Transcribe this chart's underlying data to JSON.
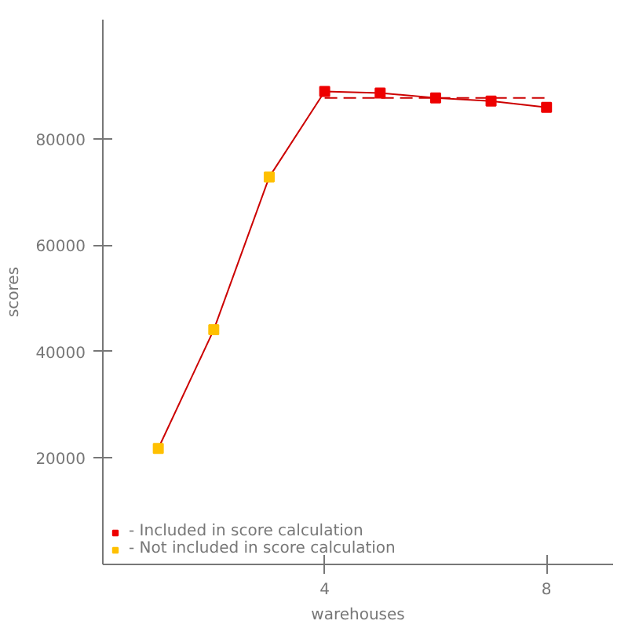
{
  "chart_data": {
    "type": "line",
    "xlabel": "warehouses",
    "ylabel": "scores",
    "xlim": [
      0,
      9.2
    ],
    "ylim": [
      0,
      102400
    ],
    "xticks": [
      4,
      8
    ],
    "yticks": [
      20000,
      40000,
      60000,
      80000
    ],
    "grid": false,
    "legend": "bottom left",
    "series": [
      {
        "type": "line",
        "color": "#cc0000",
        "marker": "none",
        "line_style": "solid",
        "x": [
          1,
          2,
          3,
          4,
          5,
          6,
          7,
          8
        ],
        "values": [
          21800,
          44100,
          72800,
          88900,
          88600,
          87700,
          87100,
          85900
        ]
      },
      {
        "type": "line",
        "color": "#cc0000",
        "marker": "none",
        "line_style": "dashed",
        "x": [
          4,
          8
        ],
        "values": [
          87700,
          87700
        ]
      },
      {
        "type": "scatter",
        "name": "- Included in score calculation",
        "color": "#ee0000",
        "marker": "square",
        "x": [
          4,
          5,
          6,
          7,
          8
        ],
        "values": [
          88900,
          88600,
          87700,
          87100,
          85900
        ]
      },
      {
        "type": "scatter",
        "name": "- Not included in score calculation",
        "color": "#ffc000",
        "marker": "square",
        "x": [
          1,
          2,
          3
        ],
        "values": [
          21800,
          44100,
          72800
        ]
      }
    ]
  }
}
